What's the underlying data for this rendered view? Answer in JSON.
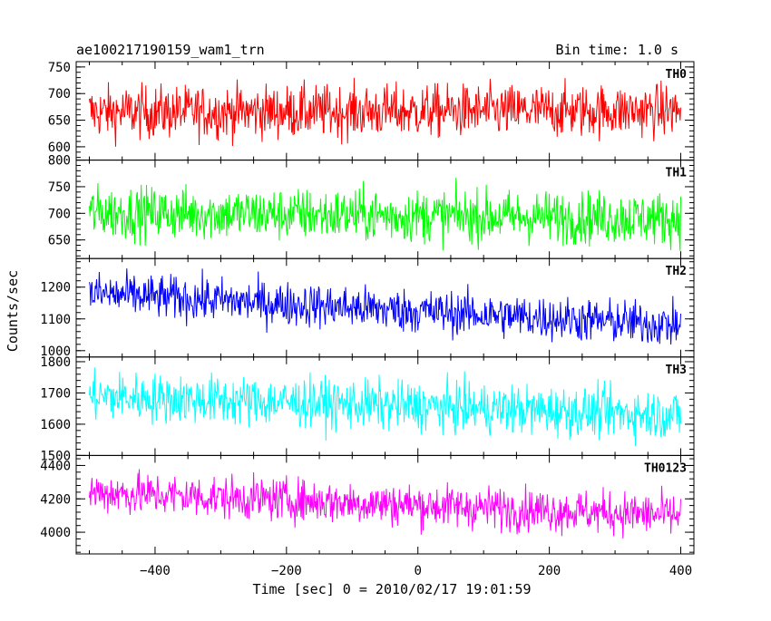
{
  "header": {
    "left_title": "ae100217190159_wam1_trn",
    "right_title": "Bin time: 1.0 s"
  },
  "chart_data": {
    "type": "line",
    "title": "ae100217190159_wam1_trn",
    "subtitle": "Bin time: 1.0 s",
    "xlabel": "Time [sec] 0 = 2010/02/17 19:01:59",
    "ylabel": "Counts/sec",
    "xlim": [
      -520,
      420
    ],
    "x_range": [
      -500,
      400
    ],
    "x_ticks": [
      -400,
      -200,
      0,
      200,
      400
    ],
    "x_tick_labels": [
      "−400",
      "−200",
      "0",
      "200",
      "400"
    ],
    "grid": false,
    "series": [
      {
        "name": "TH0",
        "color": "#ff0000",
        "ylim": [
          575,
          760
        ],
        "y_ticks": [
          600,
          650,
          700,
          750
        ],
        "y_tick_labels": [
          "600",
          "650",
          "700",
          "750"
        ],
        "level_start": 665,
        "level_end": 668,
        "noise": 25,
        "min": 583,
        "max": 757
      },
      {
        "name": "TH1",
        "color": "#00ff00",
        "ylim": [
          615,
          800
        ],
        "y_ticks": [
          650,
          700,
          750,
          800
        ],
        "y_tick_labels": [
          "650",
          "700",
          "750",
          "800"
        ],
        "level_start": 702,
        "level_end": 690,
        "noise": 25,
        "min": 628,
        "max": 770
      },
      {
        "name": "TH2",
        "color": "#0000ff",
        "ylim": [
          980,
          1290
        ],
        "y_ticks": [
          1000,
          1100,
          1200
        ],
        "y_tick_labels": [
          "1000",
          "1100",
          "1200"
        ],
        "level_start": 1180,
        "level_end": 1080,
        "noise": 35,
        "min": 990,
        "max": 1285
      },
      {
        "name": "TH3",
        "color": "#00ffff",
        "ylim": [
          1500,
          1815
        ],
        "y_ticks": [
          1500,
          1600,
          1700,
          1800
        ],
        "y_tick_labels": [
          "1500",
          "1600",
          "1700",
          "1800"
        ],
        "level_start": 1690,
        "level_end": 1630,
        "noise": 40,
        "min": 1530,
        "max": 1810
      },
      {
        "name": "TH0123",
        "color": "#ff00ff",
        "ylim": [
          3870,
          4460
        ],
        "y_ticks": [
          4000,
          4200,
          4400
        ],
        "y_tick_labels": [
          "4000",
          "4200",
          "4400"
        ],
        "level_start": 4240,
        "level_end": 4100,
        "noise": 65,
        "min": 3920,
        "max": 4450
      }
    ]
  }
}
